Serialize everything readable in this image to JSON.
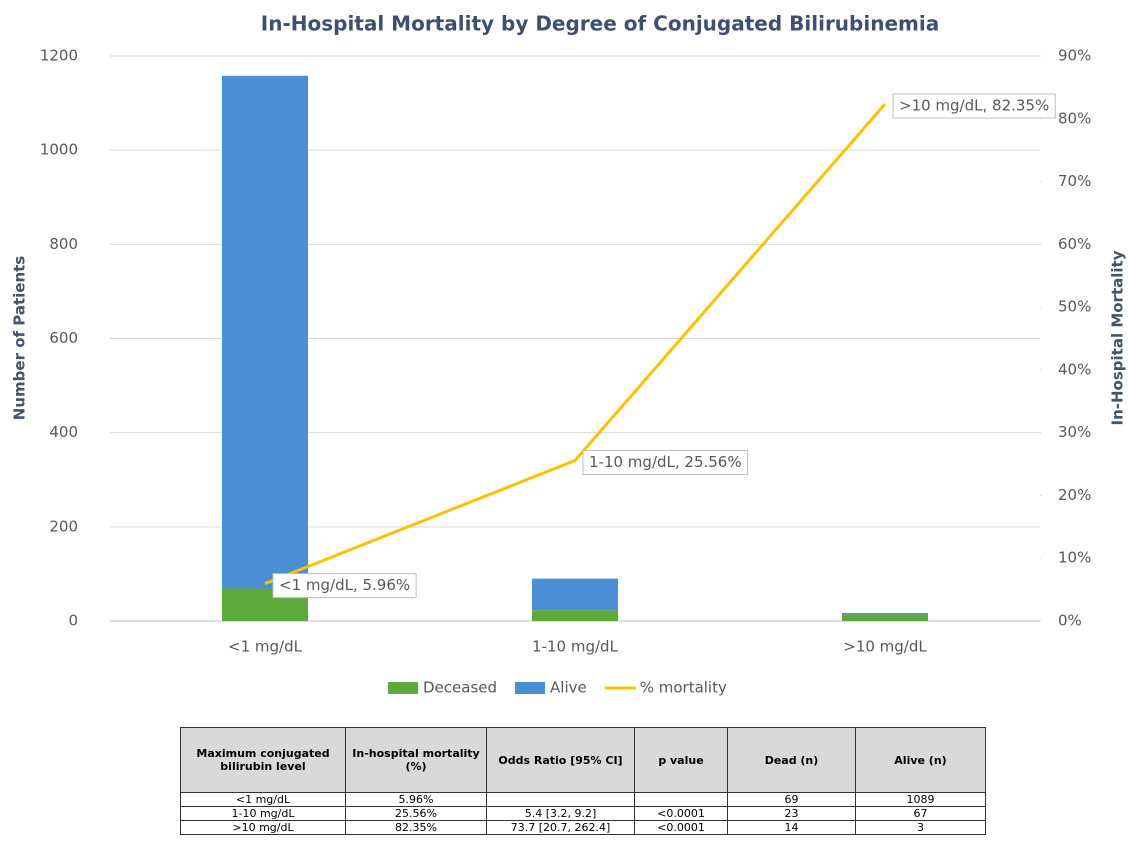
{
  "chart_data": {
    "type": "bar",
    "stacked": true,
    "title": "In-Hospital Mortality by Degree of Conjugated Bilirubinemia",
    "y_label": "Number of Patients",
    "y2_label": "In-Hospital Mortality",
    "categories": [
      "<1 mg/dL",
      "1-10 mg/dL",
      ">10 mg/dL"
    ],
    "series": [
      {
        "name": "Deceased",
        "type": "bar",
        "color": "#5ea83c",
        "values": [
          69,
          23,
          14
        ]
      },
      {
        "name": "Alive",
        "type": "bar",
        "color": "#4a8fd6",
        "values": [
          1089,
          67,
          3
        ]
      },
      {
        "name": "% mortality",
        "type": "line",
        "axis": "y2",
        "color": "#ffc000",
        "values": [
          5.96,
          25.56,
          82.35
        ],
        "value_labels": [
          "<1 mg/dL, 5.96%",
          "1-10 mg/dL, 25.56%",
          ">10 mg/dL, 82.35%"
        ]
      }
    ],
    "ylim": [
      0,
      1200
    ],
    "yticks": [
      0,
      200,
      400,
      600,
      800,
      1000,
      1200
    ],
    "y2lim": [
      0,
      90
    ],
    "y2ticks": [
      {
        "value": 0,
        "label": "0%"
      },
      {
        "value": 10,
        "label": "10%"
      },
      {
        "value": 20,
        "label": "20%"
      },
      {
        "value": 30,
        "label": "30%"
      },
      {
        "value": 40,
        "label": "40%"
      },
      {
        "value": 50,
        "label": "50%"
      },
      {
        "value": 60,
        "label": "60%"
      },
      {
        "value": 70,
        "label": "70%"
      },
      {
        "value": 80,
        "label": "80%"
      },
      {
        "value": 90,
        "label": "90%"
      }
    ],
    "grid": true,
    "legend": "bottom"
  },
  "table": {
    "header": [
      "Maximum conjugated bilirubin level",
      "In-hospital mortality (%)",
      "Odds Ratio [95% CI]",
      "p value",
      "Dead (n)",
      "Alive (n)"
    ],
    "rows": [
      [
        "<1 mg/dL",
        "5.96%",
        null,
        null,
        "69",
        "1089"
      ],
      [
        "1-10 mg/dL",
        "25.56%",
        "5.4 [3.2, 9.2]",
        "<0.0001",
        "23",
        "67"
      ],
      [
        ">10 mg/dL",
        "82.35%",
        "73.7 [20.7, 262.4]",
        "<0.0001",
        "14",
        "3"
      ]
    ]
  }
}
